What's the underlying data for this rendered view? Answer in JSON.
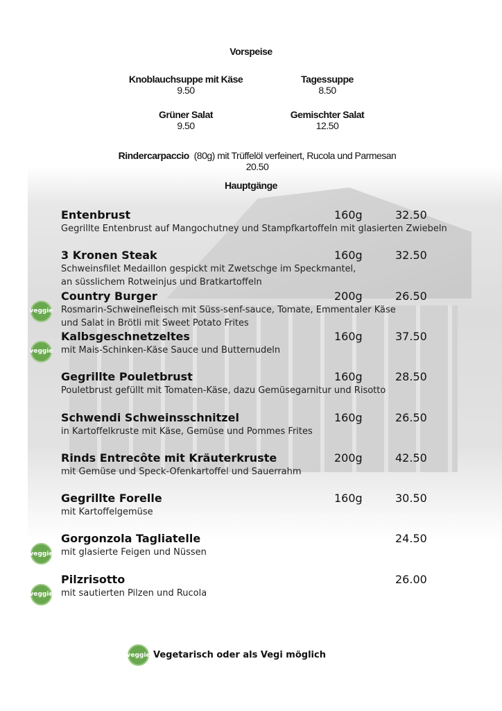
{
  "starters": {
    "title": "Vorspeise",
    "items": [
      {
        "name": "Knoblauchsuppe mit Käse",
        "price": "9.50"
      },
      {
        "name": "Tagessuppe",
        "price": "8.50"
      },
      {
        "name": "Grüner Salat",
        "price": "9.50"
      },
      {
        "name": "Gemischter Salat",
        "price": "12.50"
      }
    ],
    "carpaccio": {
      "name": "Rindercarpaccio",
      "desc": "(80g) mit Trüffelöl verfeinert, Rucola und Parmesan",
      "price": "20.50"
    }
  },
  "mains": {
    "title": "Hauptgänge",
    "items": [
      {
        "name": "Entenbrust",
        "weight": "160g",
        "price": "32.50",
        "desc": [
          "Gegrillte Entenbrust auf Mangochutney und Stampfkartoffeln mit glasierten Zwiebeln"
        ],
        "veggie": false
      },
      {
        "name": "3 Kronen Steak",
        "weight": "160g",
        "price": "32.50",
        "desc": [
          "Schweinsfilet Medaillon gespickt mit Zwetschge im Speckmantel,",
          "an süsslichem Rotweinjus und Bratkartoffeln"
        ],
        "veggie": false
      },
      {
        "name": "Country Burger",
        "weight": "200g",
        "price": "26.50",
        "desc": [
          "Rosmarin-Schweinefleisch mit Süss-senf-sauce, Tomate, Emmentaler Käse",
          "und Salat in Brötli mit Sweet Potato Frites"
        ],
        "veggie": true
      },
      {
        "name": "Kalbsgeschnetzeltes",
        "weight": "160g",
        "price": "37.50",
        "desc": [
          "mit Mais-Schinken-Käse Sauce und Butternudeln"
        ],
        "veggie": true
      },
      {
        "name": "Gegrillte Pouletbrust",
        "weight": "160g",
        "price": "28.50",
        "desc": [
          "Pouletbrust gefüllt mit Tomaten-Käse, dazu Gemüsegarnitur und Risotto"
        ],
        "veggie": false
      },
      {
        "name": "Schwendi Schweinsschnitzel",
        "weight": "160g",
        "price": "26.50",
        "desc": [
          "in Kartoffelkruste mit Käse, Gemüse und Pommes Frites"
        ],
        "veggie": false
      },
      {
        "name": "Rinds Entrecôte mit Kräuterkruste",
        "weight": "200g",
        "price": "42.50",
        "desc": [
          "mit Gemüse und Speck-Ofenkartoffel und Sauerrahm"
        ],
        "veggie": false
      },
      {
        "name": "Gegrillte Forelle",
        "weight": "160g",
        "price": "30.50",
        "desc": [
          "mit Kartoffelgemüse"
        ],
        "veggie": false
      },
      {
        "name": "Gorgonzola Tagliatelle",
        "weight": "",
        "price": "24.50",
        "desc": [
          "mit glasierte Feigen und Nüssen"
        ],
        "veggie": true
      },
      {
        "name": "Pilzrisotto",
        "weight": "",
        "price": "26.00",
        "desc": [
          "mit sautierten Pilzen und Rucola"
        ],
        "veggie": true
      }
    ]
  },
  "veggie_badge": "veggie",
  "legend": "Vegetarisch oder als Vegi möglich",
  "colors": {
    "veggie": "#6aa84f"
  }
}
